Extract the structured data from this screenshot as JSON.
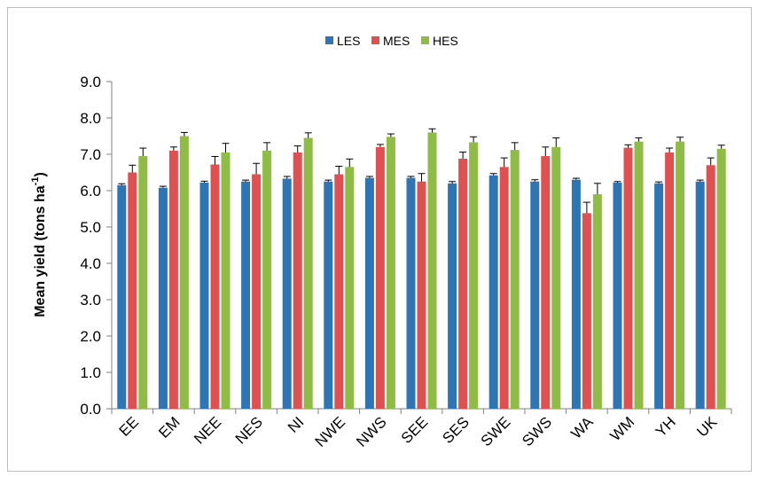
{
  "chart_data": {
    "type": "bar",
    "title": "",
    "xlabel": "",
    "ylabel": "Mean yield (tons ha",
    "ylabel_superscript": "-1",
    "ylabel_suffix": ")",
    "ylim": [
      0,
      9
    ],
    "yticks": [
      "0.0",
      "1.0",
      "2.0",
      "3.0",
      "4.0",
      "5.0",
      "6.0",
      "7.0",
      "8.0",
      "9.0"
    ],
    "grid": false,
    "legend_position": "top-center",
    "categories": [
      "EE",
      "EM",
      "NEE",
      "NES",
      "NI",
      "NWE",
      "NWS",
      "SEE",
      "SES",
      "SWE",
      "SWS",
      "WA",
      "WM",
      "YH",
      "UK"
    ],
    "series": [
      {
        "name": "LES",
        "color": "#2e75b6",
        "values": [
          6.15,
          6.08,
          6.22,
          6.25,
          6.33,
          6.25,
          6.35,
          6.35,
          6.2,
          6.42,
          6.25,
          6.3,
          6.22,
          6.2,
          6.25
        ],
        "errors": [
          0.04,
          0.04,
          0.04,
          0.04,
          0.06,
          0.04,
          0.04,
          0.04,
          0.05,
          0.05,
          0.05,
          0.04,
          0.03,
          0.04,
          0.04
        ]
      },
      {
        "name": "MES",
        "color": "#e05050",
        "values": [
          6.5,
          7.1,
          6.72,
          6.45,
          7.05,
          6.45,
          7.2,
          6.25,
          6.88,
          6.65,
          6.95,
          5.38,
          7.18,
          7.05,
          6.7
        ],
        "errors": [
          0.2,
          0.1,
          0.22,
          0.3,
          0.18,
          0.22,
          0.07,
          0.22,
          0.18,
          0.25,
          0.25,
          0.3,
          0.08,
          0.12,
          0.2
        ]
      },
      {
        "name": "HES",
        "color": "#8fbc45",
        "values": [
          6.95,
          7.5,
          7.05,
          7.1,
          7.45,
          6.65,
          7.48,
          7.6,
          7.33,
          7.12,
          7.2,
          5.9,
          7.35,
          7.35,
          7.15
        ],
        "errors": [
          0.22,
          0.1,
          0.25,
          0.22,
          0.14,
          0.22,
          0.08,
          0.1,
          0.15,
          0.2,
          0.25,
          0.3,
          0.1,
          0.12,
          0.1
        ]
      }
    ]
  }
}
